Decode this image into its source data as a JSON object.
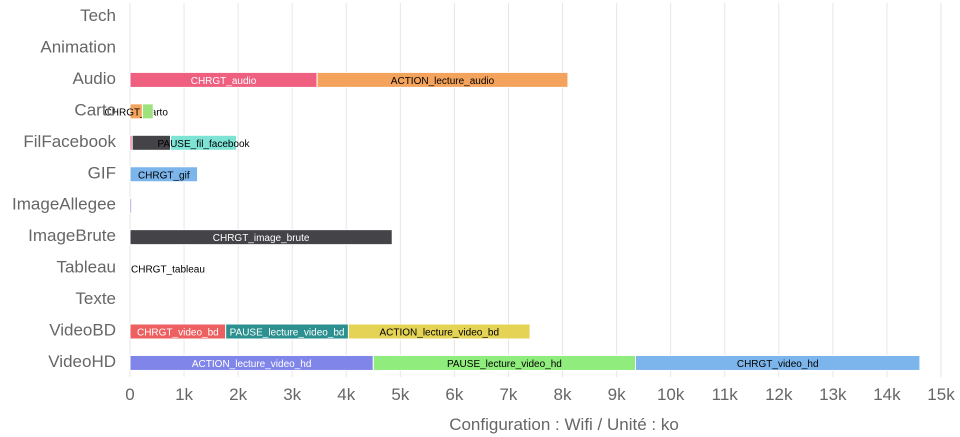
{
  "chart_data": {
    "type": "bar",
    "orientation": "horizontal",
    "stacked": true,
    "xlabel": "Configuration : Wifi / Unité : ko",
    "xlim": [
      0,
      15000
    ],
    "x_ticks": [
      {
        "value": 0,
        "label": "0"
      },
      {
        "value": 1000,
        "label": "1k"
      },
      {
        "value": 2000,
        "label": "2k"
      },
      {
        "value": 3000,
        "label": "3k"
      },
      {
        "value": 4000,
        "label": "4k"
      },
      {
        "value": 5000,
        "label": "5k"
      },
      {
        "value": 6000,
        "label": "6k"
      },
      {
        "value": 7000,
        "label": "7k"
      },
      {
        "value": 8000,
        "label": "8k"
      },
      {
        "value": 9000,
        "label": "9k"
      },
      {
        "value": 10000,
        "label": "10k"
      },
      {
        "value": 11000,
        "label": "11k"
      },
      {
        "value": 12000,
        "label": "12k"
      },
      {
        "value": 13000,
        "label": "13k"
      },
      {
        "value": 14000,
        "label": "14k"
      },
      {
        "value": 15000,
        "label": "15k"
      }
    ],
    "grid": true,
    "legend": "none",
    "categories": [
      "Tech",
      "Animation",
      "Audio",
      "Carto",
      "FilFacebook",
      "GIF",
      "ImageAllegee",
      "ImageBrute",
      "Tableau",
      "Texte",
      "VideoBD",
      "VideoHD"
    ],
    "rows": [
      {
        "category": "Tech",
        "segments": []
      },
      {
        "category": "Animation",
        "segments": []
      },
      {
        "category": "Audio",
        "segments": [
          {
            "label": "CHRGT_audio",
            "value": 3460,
            "color": "#ee5f80",
            "text_color": "#ffffff"
          },
          {
            "label": "ACTION_lecture_audio",
            "value": 4640,
            "color": "#f4a35c",
            "text_color": "#000000"
          }
        ]
      },
      {
        "category": "Carto",
        "segments": [
          {
            "label": "CHRGT_carto",
            "value": 230,
            "color": "#f4a35c",
            "text_color": "#000000"
          },
          {
            "label": "",
            "value": 200,
            "color": "#9ee27e",
            "text_color": "#000000"
          }
        ]
      },
      {
        "category": "FilFacebook",
        "segments": [
          {
            "label": "",
            "value": 40,
            "color": "#ee5f80",
            "text_color": "#000000"
          },
          {
            "label": "",
            "value": 710,
            "color": "#434348",
            "text_color": "#ffffff"
          },
          {
            "label": "PAUSE_fil_facebook",
            "value": 1220,
            "color": "#7de3d4",
            "text_color": "#000000"
          }
        ]
      },
      {
        "category": "GIF",
        "segments": [
          {
            "label": "CHRGT_gif",
            "value": 1250,
            "color": "#7cb5ec",
            "text_color": "#000000"
          }
        ]
      },
      {
        "category": "ImageAllegee",
        "segments": [
          {
            "label": "",
            "value": 30,
            "color": "#8085e9",
            "text_color": "#ffffff"
          }
        ]
      },
      {
        "category": "ImageBrute",
        "segments": [
          {
            "label": "CHRGT_image_brute",
            "value": 4850,
            "color": "#434348",
            "text_color": "#ffffff"
          }
        ]
      },
      {
        "category": "Tableau",
        "segments": [
          {
            "label": "CHRGT_tableau",
            "value": 0,
            "color": "#7cb5ec",
            "text_color": "#000000"
          }
        ]
      },
      {
        "category": "Texte",
        "segments": []
      },
      {
        "category": "VideoBD",
        "segments": [
          {
            "label": "CHRGT_video_bd",
            "value": 1770,
            "color": "#ee5f60",
            "text_color": "#ffffff"
          },
          {
            "label": "PAUSE_lecture_video_bd",
            "value": 2270,
            "color": "#2b908f",
            "text_color": "#ffffff"
          },
          {
            "label": "ACTION_lecture_video_bd",
            "value": 3360,
            "color": "#e4d354",
            "text_color": "#000000"
          }
        ]
      },
      {
        "category": "VideoHD",
        "segments": [
          {
            "label": "ACTION_lecture_video_hd",
            "value": 4500,
            "color": "#8085e9",
            "text_color": "#ffffff"
          },
          {
            "label": "PAUSE_lecture_video_hd",
            "value": 4850,
            "color": "#90ed7d",
            "text_color": "#000000"
          },
          {
            "label": "CHRGT_video_hd",
            "value": 5260,
            "color": "#7cb5ec",
            "text_color": "#000000"
          }
        ]
      }
    ]
  }
}
